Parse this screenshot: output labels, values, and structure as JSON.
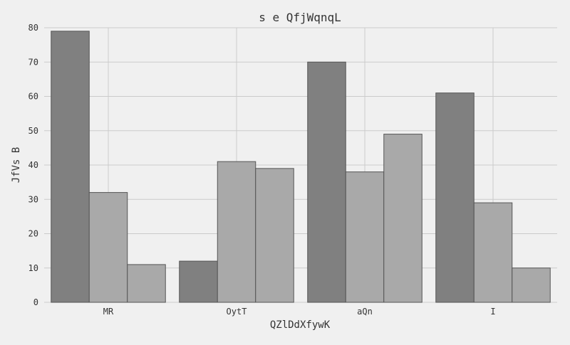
{
  "chart_data": {
    "type": "bar",
    "title": "s e QfjWqnqL",
    "xlabel": "QZlDdXfywK",
    "ylabel": "JfVs B",
    "categories": [
      "MR",
      "OytT",
      "aQn",
      "I"
    ],
    "series": [
      {
        "values": [
          79,
          12,
          70,
          61
        ],
        "color": "#808080"
      },
      {
        "values": [
          32,
          41,
          38,
          29
        ],
        "color": "#a9a9a9"
      },
      {
        "values": [
          11,
          39,
          49,
          10
        ],
        "color": "#a9a9a9"
      }
    ],
    "ylim": [
      0,
      80
    ],
    "yticks": [
      "0",
      "10",
      "20",
      "30",
      "40",
      "50",
      "60",
      "70",
      "80"
    ],
    "grid": true,
    "background": "#f0f0f0",
    "grid_color": "#cbcbcb",
    "bar_edge_color": "#555555"
  }
}
